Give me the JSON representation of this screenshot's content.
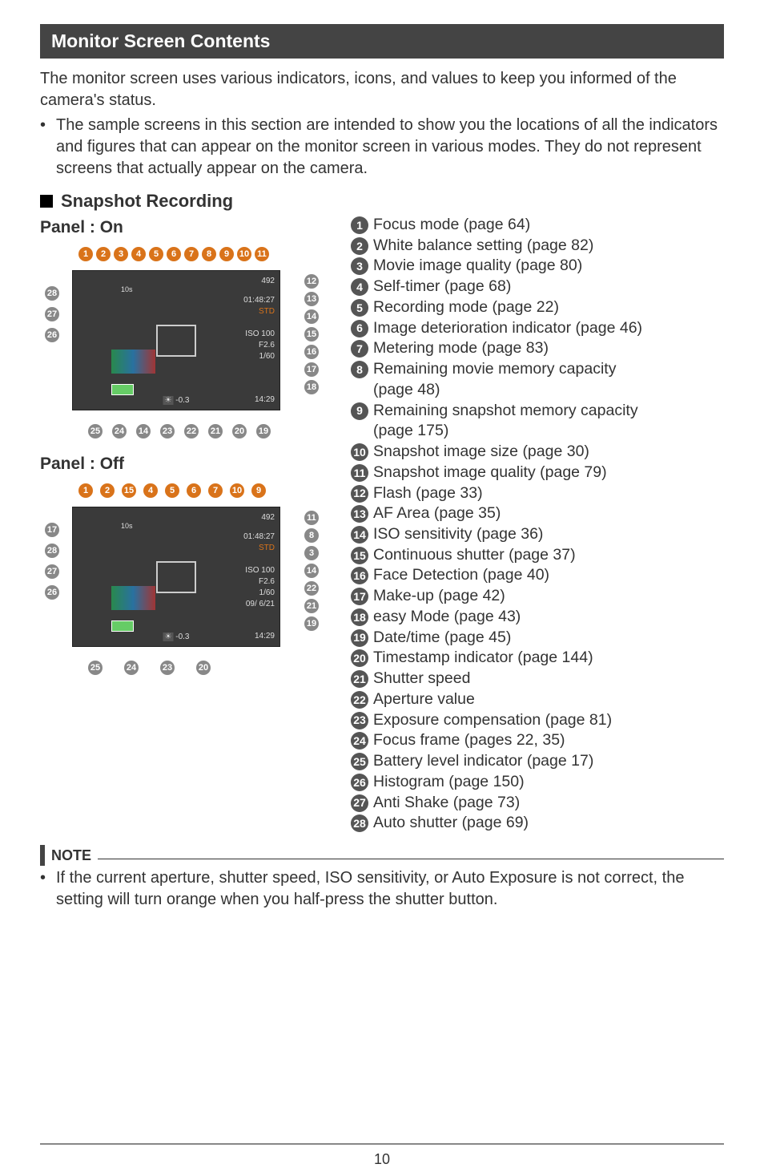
{
  "header": "Monitor Screen Contents",
  "intro": "The monitor screen uses various indicators, icons, and values to keep you informed of the camera's status.",
  "intro_bullet": "The sample screens in this section are intended to show you the locations of all the indicators and figures that can appear on the monitor screen in various modes. They do not represent screens that actually appear on the camera.",
  "sub_header": "Snapshot Recording",
  "panel_on_label": "Panel : On",
  "panel_off_label": "Panel : Off",
  "legend": [
    {
      "n": "1",
      "t": "Focus mode (page 64)"
    },
    {
      "n": "2",
      "t": "White balance setting (page 82)"
    },
    {
      "n": "3",
      "t": "Movie image quality (page 80)"
    },
    {
      "n": "4",
      "t": "Self-timer (page 68)"
    },
    {
      "n": "5",
      "t": "Recording mode (page 22)"
    },
    {
      "n": "6",
      "t": "Image deterioration indicator (page 46)"
    },
    {
      "n": "7",
      "t": "Metering mode (page 83)"
    },
    {
      "n": "8",
      "t": "Remaining movie memory capacity",
      "sub": "(page 48)"
    },
    {
      "n": "9",
      "t": "Remaining snapshot memory capacity",
      "sub": "(page 175)"
    },
    {
      "n": "10",
      "t": "Snapshot image size (page 30)"
    },
    {
      "n": "11",
      "t": "Snapshot image quality (page 79)"
    },
    {
      "n": "12",
      "t": "Flash (page 33)"
    },
    {
      "n": "13",
      "t": "AF Area (page 35)"
    },
    {
      "n": "14",
      "t": "ISO sensitivity (page 36)"
    },
    {
      "n": "15",
      "t": "Continuous shutter (page 37)"
    },
    {
      "n": "16",
      "t": "Face Detection (page 40)"
    },
    {
      "n": "17",
      "t": "Make-up (page 42)"
    },
    {
      "n": "18",
      "t": "easy Mode (page 43)"
    },
    {
      "n": "19",
      "t": "Date/time (page 45)"
    },
    {
      "n": "20",
      "t": "Timestamp indicator (page 144)"
    },
    {
      "n": "21",
      "t": "Shutter speed"
    },
    {
      "n": "22",
      "t": "Aperture value"
    },
    {
      "n": "23",
      "t": "Exposure compensation (page 81)"
    },
    {
      "n": "24",
      "t": "Focus frame (pages 22, 35)"
    },
    {
      "n": "25",
      "t": "Battery level indicator (page 17)"
    },
    {
      "n": "26",
      "t": "Histogram (page 150)"
    },
    {
      "n": "27",
      "t": "Anti Shake (page 73)"
    },
    {
      "n": "28",
      "t": "Auto shutter (page 69)"
    }
  ],
  "screen_on": {
    "top_nums_orange": [
      "1",
      "2",
      "3",
      "4",
      "5",
      "6",
      "7",
      "8",
      "9",
      "10",
      "11"
    ],
    "right_nums": [
      "12",
      "13",
      "14",
      "15",
      "16",
      "17",
      "18"
    ],
    "bottom_nums": [
      "25",
      "24",
      "14",
      "23",
      "22",
      "21",
      "20",
      "19"
    ],
    "left_nums": [
      "28",
      "27",
      "26"
    ],
    "display": {
      "count": "492",
      "time": "01:48:27",
      "iso": "ISO 100",
      "fstop": "F2.6",
      "shutter": "1/60",
      "ev": "-0.3",
      "clock": "14:29",
      "std": "STD",
      "timer": "10s"
    }
  },
  "screen_off": {
    "top_nums": [
      "1",
      "2",
      "15",
      "4",
      "5",
      "6",
      "7",
      "10",
      "9"
    ],
    "right_nums": [
      "11",
      "8",
      "3",
      "14",
      "22",
      "21",
      "19"
    ],
    "bottom_nums": [
      "25",
      "24",
      "23",
      "20"
    ],
    "left_nums": [
      "17",
      "28",
      "27",
      "26"
    ],
    "display": {
      "count": "492",
      "time": "01:48:27",
      "iso": "ISO 100",
      "fstop": "F2.6",
      "shutter": "1/60",
      "date": "09/ 6/21",
      "ev": "-0.3",
      "clock": "14:29",
      "std": "STD",
      "timer": "10s"
    }
  },
  "note_label": "NOTE",
  "note_text": "If the current aperture, shutter speed, ISO sensitivity, or Auto Exposure is not correct, the setting will turn orange when you half-press the shutter button.",
  "page_number": "10",
  "colors": {
    "header_bg": "#444444",
    "num_orange": "#d9731a",
    "num_gray": "#777777",
    "text": "#333333"
  }
}
